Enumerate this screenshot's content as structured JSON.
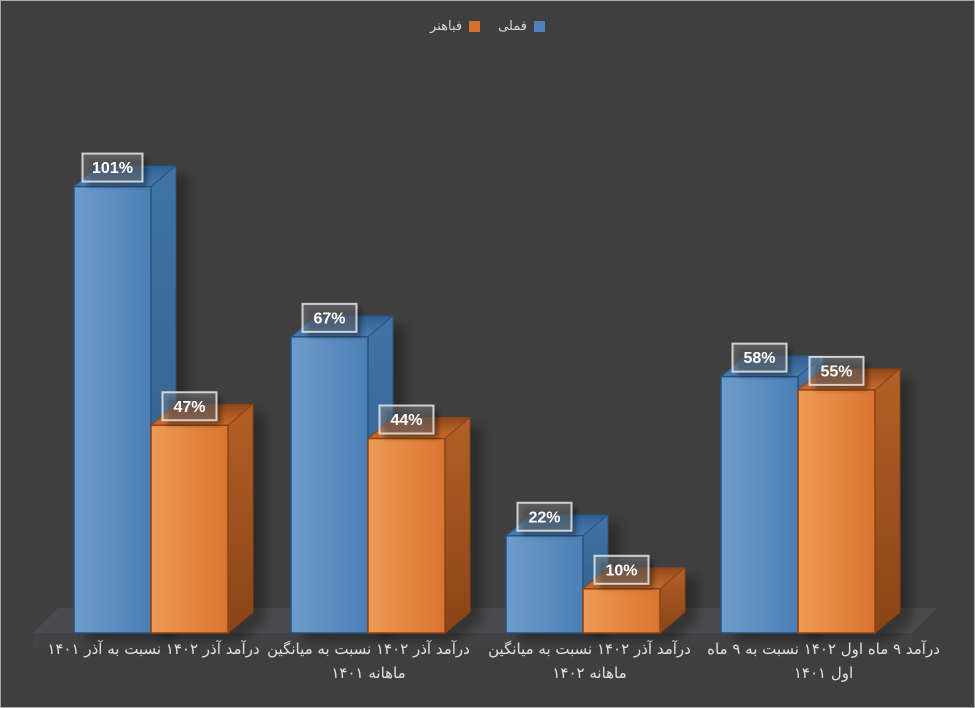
{
  "chart_data": {
    "type": "bar",
    "variant": "3d-clustered-column",
    "title": "",
    "legend_position": "top",
    "grid": false,
    "background_color": "#3F3F3F",
    "value_format": "percent",
    "ylim": [
      0,
      110
    ],
    "categories": [
      "درآمد آذر ۱۴۰۲ نسبت به آذر ۱۴۰۱",
      "درآمد آذر ۱۴۰۲ نسبت به میانگین ماهانه ۱۴۰۱",
      "درآمد آذر ۱۴۰۲ نسبت به میانگین ماهانه ۱۴۰۲",
      "درآمد ۹ ماه اول ۱۴۰۲ نسبت به ۹ ماه اول ۱۴۰۱"
    ],
    "series": [
      {
        "name": "فملی",
        "color": "#4E81BD",
        "values": [
          101,
          67,
          22,
          58
        ],
        "labels": [
          "101%",
          "67%",
          "22%",
          "58%"
        ],
        "shades": {
          "front_light": "#6E9CCB",
          "front": "#4C7FB6",
          "top_dark": "#2F5F91",
          "top": "#4A7CAE",
          "side": "#4173A6",
          "side_dark": "#2E5B85",
          "border": "#24537F"
        }
      },
      {
        "name": "فباهنر",
        "color": "#D4702E",
        "values": [
          47,
          44,
          10,
          55
        ],
        "labels": [
          "47%",
          "44%",
          "10%",
          "55%"
        ],
        "shades": {
          "front_light": "#EE9A55",
          "front": "#D97430",
          "top_dark": "#8F471B",
          "top": "#C86E2E",
          "side": "#B26026",
          "side_dark": "#8A4416",
          "border": "#8A4315"
        }
      }
    ],
    "label_box": {
      "fill": "rgba(146,146,153,0.38)",
      "border": "rgba(232,232,232,0.85)",
      "text_color": "#FFFFFF"
    },
    "floor_color": "#4B4B4D"
  }
}
